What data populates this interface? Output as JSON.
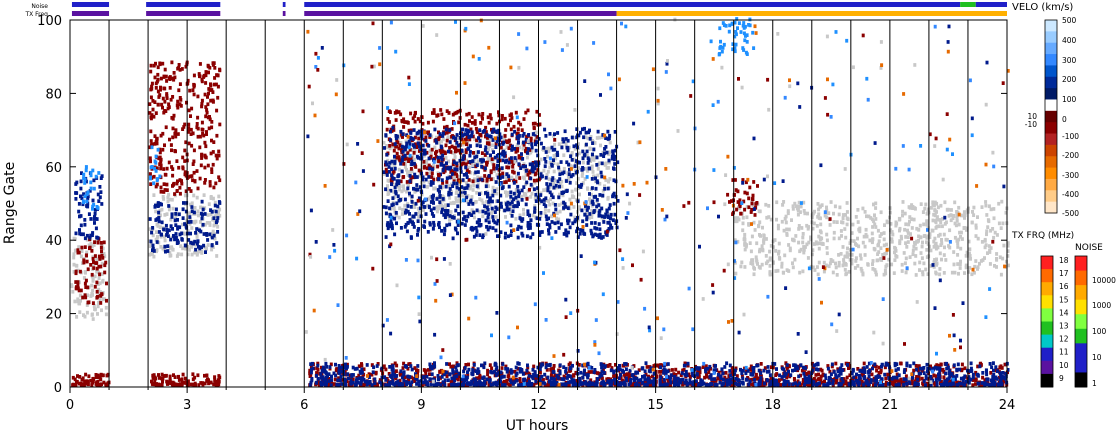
{
  "status_strips": {
    "noise_label": "Noise",
    "txfreq_label": "TX Freq"
  },
  "chart_data": {
    "type": "scatter",
    "xlabel": "UT hours",
    "ylabel": "Range Gate",
    "xlim": [
      0,
      24
    ],
    "ylim": [
      0,
      100
    ],
    "x_ticks": [
      0,
      3,
      6,
      9,
      12,
      15,
      18,
      21,
      24
    ],
    "y_ticks": [
      0,
      20,
      40,
      60,
      80,
      100
    ],
    "grid": false,
    "hour_markers": [
      1,
      2,
      3,
      4,
      5,
      6,
      7,
      8,
      9,
      10,
      11,
      12,
      13,
      14,
      15,
      16,
      17,
      18,
      19,
      20,
      21,
      22,
      23
    ],
    "data_gaps": [
      [
        1.0,
        1.9
      ],
      [
        3.9,
        5.4
      ],
      [
        5.5,
        6.0
      ]
    ],
    "noise_strip": {
      "segments": [
        [
          0.05,
          1.0,
          "#2020c8"
        ],
        [
          1.95,
          3.85,
          "#2020c8"
        ],
        [
          5.45,
          5.52,
          "#2020c8"
        ],
        [
          6.0,
          22.8,
          "#2020c8"
        ],
        [
          22.8,
          23.2,
          "#20c020"
        ],
        [
          23.2,
          24.0,
          "#2020c8"
        ]
      ]
    },
    "txfreq_strip": {
      "segments": [
        [
          0.05,
          1.0,
          "#5a12a0"
        ],
        [
          1.95,
          3.85,
          "#5a12a0"
        ],
        [
          5.45,
          5.52,
          "#5a12a0"
        ],
        [
          6.0,
          14.0,
          "#5a12a0"
        ],
        [
          14.0,
          24.0,
          "#ffb000"
        ]
      ]
    },
    "scatter_clusters": [
      {
        "name": "ground-scatter",
        "color": "#c8c8c8",
        "regions": [
          [
            0.0,
            0.9,
            18,
            40
          ],
          [
            2.0,
            3.8,
            35,
            52
          ],
          [
            17.0,
            24.0,
            30,
            50
          ],
          [
            8.0,
            13.8,
            45,
            68
          ]
        ]
      },
      {
        "name": "negative-velocity",
        "color": "#8b0000",
        "regions": [
          [
            0.0,
            1.0,
            0,
            3
          ],
          [
            2.0,
            3.8,
            0,
            3
          ],
          [
            6.1,
            24.0,
            0,
            6
          ],
          [
            0.1,
            0.9,
            22,
            40
          ],
          [
            2.0,
            3.8,
            52,
            88
          ],
          [
            8.0,
            12.0,
            55,
            75
          ],
          [
            16.8,
            17.6,
            46,
            56
          ]
        ]
      },
      {
        "name": "positive-velocity",
        "color": "#001a8c",
        "regions": [
          [
            0.1,
            0.8,
            40,
            58
          ],
          [
            2.0,
            3.8,
            36,
            50
          ],
          [
            8.0,
            14.0,
            40,
            70
          ],
          [
            6.1,
            24.0,
            0,
            6
          ]
        ]
      },
      {
        "name": "high-positive-velocity",
        "color": "#1e90ff",
        "regions": [
          [
            16.6,
            17.5,
            90,
            100
          ],
          [
            0.3,
            0.7,
            48,
            60
          ],
          [
            2.0,
            2.3,
            55,
            65
          ]
        ]
      },
      {
        "name": "noise-speckle",
        "color": "mixed",
        "regions": [
          [
            6.0,
            24.0,
            0,
            100
          ]
        ]
      }
    ],
    "velocity_colorbar": {
      "title": "VELO (km/s)",
      "tick_labels": [
        "500",
        "400",
        "300",
        "200",
        "100",
        "0",
        "10",
        "-10",
        "-100",
        "-200",
        "-300",
        "-400",
        "-500"
      ],
      "colors": [
        "#cce8ff",
        "#99ccff",
        "#66aaff",
        "#3388ff",
        "#0055cc",
        "#002a99",
        "#001a66",
        "#ffffff",
        "#660000",
        "#8b0000",
        "#b22222",
        "#cc4400",
        "#e66a00",
        "#ff8c00",
        "#ffaa44",
        "#ffcc88",
        "#ffe6c8"
      ]
    },
    "txfreq_colorbar": {
      "title": "TX FRQ (MHz)",
      "tick_labels": [
        "18",
        "17",
        "16",
        "15",
        "14",
        "13",
        "12",
        "11",
        "10",
        "9"
      ],
      "colors": [
        "#ff2020",
        "#ff6a00",
        "#ffaa00",
        "#ffe000",
        "#80ff40",
        "#20c020",
        "#00c8c8",
        "#2020c8",
        "#5a12a0",
        "#000000"
      ]
    },
    "noise_colorbar": {
      "title": "NOISE",
      "tick_labels": [
        "10000",
        "1000",
        "100",
        "10",
        "1"
      ],
      "colors": [
        "#ff2020",
        "#ff6a00",
        "#ffaa00",
        "#ffe000",
        "#80ff40",
        "#20c020",
        "#2020c8",
        "#2020c8",
        "#000000"
      ]
    }
  }
}
